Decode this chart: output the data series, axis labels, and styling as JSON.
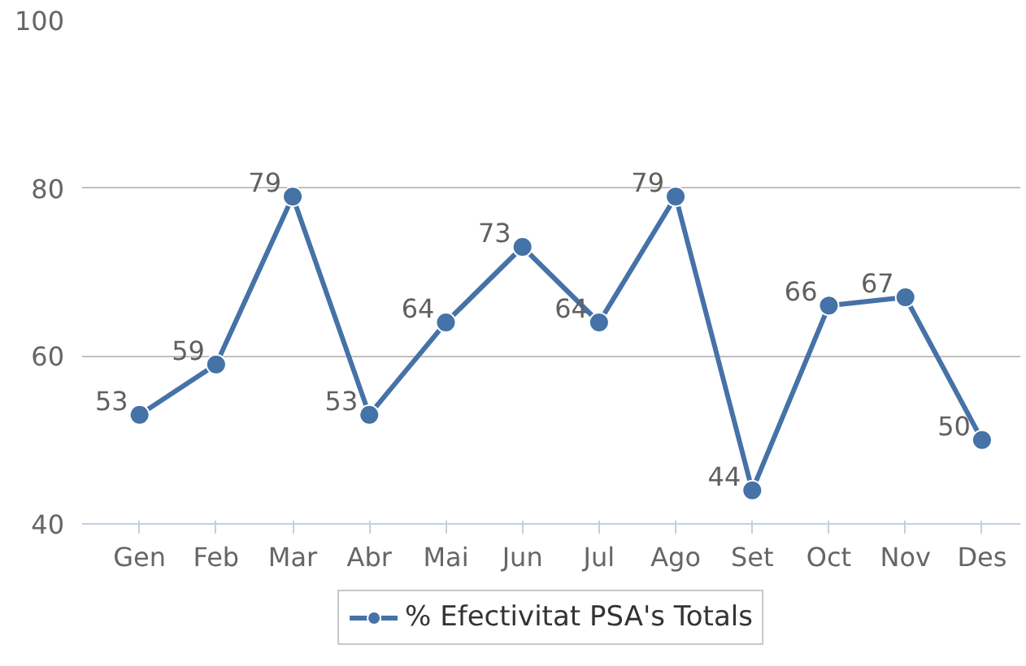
{
  "chart_data": {
    "type": "line",
    "categories": [
      "Gen",
      "Feb",
      "Mar",
      "Abr",
      "Mai",
      "Jun",
      "Jul",
      "Ago",
      "Set",
      "Oct",
      "Nov",
      "Des"
    ],
    "series": [
      {
        "name": "% Efectivitat PSA's Totals",
        "color": "#4572a7",
        "values": [
          53,
          59,
          79,
          53,
          64,
          73,
          64,
          79,
          44,
          66,
          67,
          50
        ]
      }
    ],
    "ylim": [
      40,
      100
    ],
    "yticks": [
      40,
      60,
      80,
      100
    ],
    "grid": "y",
    "legend": "bottom",
    "marker": "circle",
    "line_style": "solid",
    "data_labels": true
  }
}
